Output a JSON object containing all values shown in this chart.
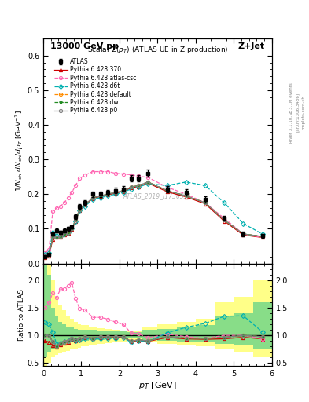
{
  "title_top": "13000 GeV pp",
  "title_right": "Z+Jet",
  "plot_title": "Scalar Σ(p_{T}) (ATLAS UE in Z production)",
  "watermark": "ATLAS_2019_I1736531",
  "ylabel_main": "1/N_{ch} dN_{ch}/dp_{T} [GeV⁻¹]",
  "ylabel_ratio": "Ratio to ATLAS",
  "xlabel": "p_{T} [GeV]",
  "right_label": "Rivet 3.1.10, ≥ 3.1M events",
  "arxiv_label": "[arXiv:1306.3436]",
  "mcplots_label": "mcplots.cern.ch",
  "xlim": [
    0,
    6
  ],
  "ylim_main": [
    0,
    0.65
  ],
  "ylim_ratio": [
    0.45,
    2.3
  ],
  "yticks_main": [
    0.0,
    0.1,
    0.2,
    0.3,
    0.4,
    0.5,
    0.6
  ],
  "yticks_ratio": [
    0.5,
    1.0,
    1.5,
    2.0
  ],
  "atlas_x": [
    0.05,
    0.15,
    0.25,
    0.35,
    0.45,
    0.55,
    0.65,
    0.75,
    0.85,
    0.95,
    1.1,
    1.3,
    1.5,
    1.7,
    1.9,
    2.1,
    2.3,
    2.5,
    2.75,
    3.25,
    3.75,
    4.25,
    4.75,
    5.25,
    5.75
  ],
  "atlas_y": [
    0.02,
    0.025,
    0.085,
    0.095,
    0.09,
    0.095,
    0.1,
    0.105,
    0.135,
    0.165,
    0.175,
    0.2,
    0.2,
    0.205,
    0.21,
    0.215,
    0.245,
    0.245,
    0.26,
    0.215,
    0.205,
    0.185,
    0.13,
    0.085,
    0.08
  ],
  "atlas_yerr": [
    0.003,
    0.003,
    0.005,
    0.005,
    0.005,
    0.005,
    0.005,
    0.005,
    0.006,
    0.007,
    0.007,
    0.008,
    0.008,
    0.008,
    0.008,
    0.008,
    0.009,
    0.009,
    0.01,
    0.009,
    0.009,
    0.009,
    0.007,
    0.006,
    0.006
  ],
  "py370_x": [
    0.05,
    0.15,
    0.25,
    0.35,
    0.45,
    0.55,
    0.65,
    0.75,
    0.85,
    0.95,
    1.1,
    1.3,
    1.5,
    1.7,
    1.9,
    2.1,
    2.3,
    2.5,
    2.75,
    3.25,
    3.75,
    4.25,
    4.75,
    5.25,
    5.75
  ],
  "py370_y": [
    0.018,
    0.022,
    0.07,
    0.075,
    0.075,
    0.082,
    0.088,
    0.098,
    0.122,
    0.152,
    0.168,
    0.188,
    0.193,
    0.198,
    0.203,
    0.208,
    0.218,
    0.222,
    0.232,
    0.207,
    0.192,
    0.172,
    0.122,
    0.082,
    0.075
  ],
  "py370_color": "#cc0000",
  "py370_label": "Pythia 6.428 370",
  "pyatlas_x": [
    0.05,
    0.15,
    0.25,
    0.35,
    0.45,
    0.55,
    0.65,
    0.75,
    0.85,
    0.95,
    1.1,
    1.3,
    1.5,
    1.7,
    1.9,
    2.1,
    2.3,
    2.5,
    2.75,
    3.25,
    3.75,
    4.25,
    4.75,
    5.25,
    5.75
  ],
  "pyatlas_y": [
    0.03,
    0.04,
    0.15,
    0.16,
    0.165,
    0.175,
    0.19,
    0.205,
    0.225,
    0.245,
    0.255,
    0.265,
    0.265,
    0.265,
    0.26,
    0.258,
    0.256,
    0.252,
    0.248,
    0.22,
    0.2,
    0.175,
    0.13,
    0.085,
    0.075
  ],
  "pyatlas_color": "#ff69b4",
  "pyatlas_label": "Pythia 6.428 atlas-csc",
  "pyd6t_x": [
    0.05,
    0.15,
    0.25,
    0.35,
    0.45,
    0.55,
    0.65,
    0.75,
    0.85,
    0.95,
    1.1,
    1.3,
    1.5,
    1.7,
    1.9,
    2.1,
    2.3,
    2.5,
    2.75,
    3.25,
    3.75,
    4.25,
    4.75,
    5.25,
    5.75
  ],
  "pyd6t_y": [
    0.025,
    0.03,
    0.09,
    0.08,
    0.078,
    0.085,
    0.09,
    0.1,
    0.122,
    0.152,
    0.165,
    0.185,
    0.19,
    0.195,
    0.2,
    0.205,
    0.215,
    0.22,
    0.23,
    0.225,
    0.235,
    0.225,
    0.175,
    0.115,
    0.085
  ],
  "pyd6t_color": "#00b0b0",
  "pyd6t_label": "Pythia 6.428 d6t",
  "pydef_x": [
    0.05,
    0.15,
    0.25,
    0.35,
    0.45,
    0.55,
    0.65,
    0.75,
    0.85,
    0.95,
    1.1,
    1.3,
    1.5,
    1.7,
    1.9,
    2.1,
    2.3,
    2.5,
    2.75,
    3.25,
    3.75,
    4.25,
    4.75,
    5.25,
    5.75
  ],
  "pydef_y": [
    0.02,
    0.025,
    0.075,
    0.077,
    0.078,
    0.085,
    0.09,
    0.1,
    0.125,
    0.155,
    0.17,
    0.19,
    0.195,
    0.2,
    0.205,
    0.21,
    0.22,
    0.225,
    0.235,
    0.21,
    0.195,
    0.175,
    0.125,
    0.085,
    0.078
  ],
  "pydef_color": "#ff8c00",
  "pydef_label": "Pythia 6.428 default",
  "pydw_x": [
    0.05,
    0.15,
    0.25,
    0.35,
    0.45,
    0.55,
    0.65,
    0.75,
    0.85,
    0.95,
    1.1,
    1.3,
    1.5,
    1.7,
    1.9,
    2.1,
    2.3,
    2.5,
    2.75,
    3.25,
    3.75,
    4.25,
    4.75,
    5.25,
    5.75
  ],
  "pydw_y": [
    0.02,
    0.025,
    0.075,
    0.077,
    0.078,
    0.085,
    0.09,
    0.1,
    0.125,
    0.155,
    0.17,
    0.19,
    0.195,
    0.2,
    0.205,
    0.21,
    0.22,
    0.225,
    0.235,
    0.21,
    0.195,
    0.175,
    0.125,
    0.085,
    0.078
  ],
  "pydw_color": "#228b22",
  "pydw_label": "Pythia 6.428 dw",
  "pyp0_x": [
    0.05,
    0.15,
    0.25,
    0.35,
    0.45,
    0.55,
    0.65,
    0.75,
    0.85,
    0.95,
    1.1,
    1.3,
    1.5,
    1.7,
    1.9,
    2.1,
    2.3,
    2.5,
    2.75,
    3.25,
    3.75,
    4.25,
    4.75,
    5.25,
    5.75
  ],
  "pyp0_y": [
    0.02,
    0.025,
    0.075,
    0.077,
    0.078,
    0.085,
    0.09,
    0.1,
    0.125,
    0.155,
    0.17,
    0.19,
    0.195,
    0.2,
    0.205,
    0.21,
    0.22,
    0.225,
    0.235,
    0.21,
    0.195,
    0.175,
    0.125,
    0.085,
    0.078
  ],
  "pyp0_color": "#808080",
  "pyp0_label": "Pythia 6.428 p0",
  "band_x_edges": [
    0,
    0.1,
    0.2,
    0.3,
    0.4,
    0.5,
    0.6,
    0.7,
    0.8,
    0.9,
    1.0,
    1.2,
    1.4,
    1.6,
    1.8,
    2.0,
    2.2,
    2.4,
    2.6,
    3.0,
    3.5,
    4.0,
    4.5,
    5.0,
    5.5,
    6.0
  ],
  "band_green_lo": [
    0.6,
    0.7,
    0.75,
    0.8,
    0.82,
    0.84,
    0.86,
    0.88,
    0.88,
    0.89,
    0.9,
    0.91,
    0.92,
    0.93,
    0.94,
    0.94,
    0.95,
    0.95,
    0.92,
    0.9,
    0.88,
    0.87,
    0.85,
    0.82,
    0.75,
    0.75
  ],
  "band_green_hi": [
    2.5,
    2.1,
    1.5,
    1.35,
    1.25,
    1.2,
    1.15,
    1.15,
    1.12,
    1.1,
    1.1,
    1.1,
    1.09,
    1.08,
    1.07,
    1.07,
    1.06,
    1.06,
    1.1,
    1.12,
    1.15,
    1.18,
    1.35,
    1.4,
    1.6,
    1.6
  ],
  "band_yellow_lo": [
    0.45,
    0.5,
    0.6,
    0.65,
    0.68,
    0.7,
    0.72,
    0.74,
    0.76,
    0.78,
    0.8,
    0.82,
    0.84,
    0.86,
    0.88,
    0.89,
    0.9,
    0.9,
    0.88,
    0.85,
    0.82,
    0.8,
    0.75,
    0.7,
    0.6,
    0.6
  ],
  "band_yellow_hi": [
    3.0,
    2.5,
    2.0,
    1.7,
    1.55,
    1.45,
    1.35,
    1.3,
    1.25,
    1.2,
    1.18,
    1.15,
    1.13,
    1.11,
    1.1,
    1.09,
    1.08,
    1.08,
    1.15,
    1.2,
    1.25,
    1.3,
    1.6,
    1.7,
    2.0,
    2.0
  ]
}
